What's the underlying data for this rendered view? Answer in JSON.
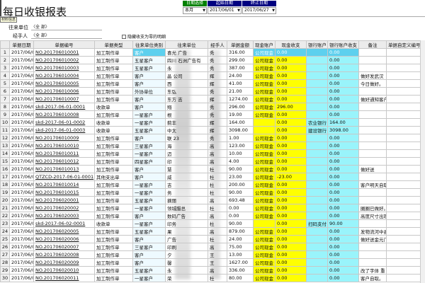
{
  "title": "每日收银报表",
  "filter": {
    "date_select_label": "日期选择",
    "start_label": "起始日期",
    "end_label": "终止日期",
    "period": "本月",
    "start": "2017/06/01",
    "end": "2017/06/27",
    "colors": {
      "date_select": "#008000",
      "start": "#000080",
      "end": "#000080"
    }
  },
  "tooltip": "材料信息",
  "form": {
    "unit_label": "往来单位",
    "unit_value": "〈全 部〉",
    "handler_label": "经手人",
    "handler_value": "〈全 部〉",
    "hide_zero_label": "隐藏收支为零的明细"
  },
  "columns": [
    "",
    "单据日期",
    "单据编号",
    "单据类型",
    "往来单位类别",
    "往来单位",
    "经手人",
    "单据金额",
    "现金账户",
    "现金收支",
    "银行账户",
    "银行账户收支",
    "备注",
    "单据自定义编号"
  ],
  "rows": [
    {
      "n": "1",
      "date": "2017/06/01",
      "no": "NO.201706010001",
      "type": "加工制作单",
      "cat": "客户",
      "unit": "喜光 广告",
      "h": "秀",
      "amt": "316.00",
      "cashacc": "公司现金",
      "cash": "0.00",
      "bankacc": "",
      "bank": "0.00",
      "memo": ""
    },
    {
      "n": "2",
      "date": "2017/06/01",
      "no": "NO.201706010002",
      "type": "加工制作单",
      "cat": "五星客户",
      "unit": "四川 石洲广告有",
      "h": "秀",
      "amt": "299.00",
      "cashacc": "公司现金",
      "cash": "0.00",
      "bankacc": "",
      "bank": "0.00",
      "memo": ""
    },
    {
      "n": "3",
      "date": "2017/06/01",
      "no": "NO.201706010003",
      "type": "加工制作单",
      "cat": "五星客户",
      "unit": "永 ",
      "h": "秀",
      "amt": "387.00",
      "cashacc": "公司现金",
      "cash": "0.00",
      "bankacc": "",
      "bank": "0.00",
      "memo": ""
    },
    {
      "n": "4",
      "date": "2017/06/01",
      "no": "NO.201706010004",
      "type": "加工制作单",
      "cat": "客户",
      "unit": "晶 公司",
      "h": "辉",
      "amt": "24.00",
      "cashacc": "公司现金",
      "cash": "0.00",
      "bankacc": "",
      "bank": "0.00",
      "memo": "做好发武汉"
    },
    {
      "n": "5",
      "date": "2017/06/01",
      "no": "NO.201706010005",
      "type": "加工制作单",
      "cat": "客户",
      "unit": "西 ",
      "h": "辉",
      "amt": "41.00",
      "cashacc": "公司现金",
      "cash": "0.00",
      "bankacc": "",
      "bank": "0.00",
      "memo": "今日做好。"
    },
    {
      "n": "6",
      "date": "2017/06/01",
      "no": "NO.201706010006",
      "type": "加工制作单",
      "cat": "外协单位",
      "unit": "东弘 ",
      "h": "秀",
      "amt": "21.00",
      "cashacc": "公司现金",
      "cash": "0.00",
      "bankacc": "",
      "bank": "0.00",
      "memo": ""
    },
    {
      "n": "7",
      "date": "2017/06/01",
      "no": "NO.201706010007",
      "type": "加工制作单",
      "cat": "客户",
      "unit": "东方 吉",
      "h": "辉",
      "amt": "1274.00",
      "cashacc": "公司现金",
      "cash": "0.00",
      "bankacc": "",
      "bank": "0.00",
      "memo": "做好通知客户"
    },
    {
      "n": "8",
      "date": "2017/06/01",
      "no": "skd-2017-06-01-0001",
      "type": "收款单",
      "cat": "客户",
      "unit": "翔 ",
      "h": "秀",
      "amt": "296.00",
      "cashacc": "公司现金",
      "cash": "296.00",
      "bankacc": "",
      "bank": "0.00",
      "memo": ""
    },
    {
      "n": "9",
      "date": "2017/06/01",
      "no": "NO.201706010008",
      "type": "加工制作单",
      "cat": "一星客户",
      "unit": "根 ",
      "h": "秀",
      "amt": "19.00",
      "cashacc": "公司现金",
      "cash": "0.00",
      "bankacc": "",
      "bank": "0.00",
      "memo": ""
    },
    {
      "n": "10",
      "date": "2017/06/01",
      "no": "skd-2017-06-01-0002",
      "type": "收款单",
      "cat": "一星客户",
      "unit": "蓟丰 ",
      "h": "辉",
      "amt": "164.00",
      "cashacc": "",
      "cash": "0.00",
      "bankacc": "农业银行",
      "bank": "164.00",
      "memo": ""
    },
    {
      "n": "11",
      "date": "2017/06/01",
      "no": "skd-2017-06-01-0003",
      "type": "收款单",
      "cat": "五星客户",
      "unit": "中太 ",
      "h": "辉",
      "amt": "3098.00",
      "cashacc": "",
      "cash": "0.00",
      "bankacc": "建设银行",
      "bank": "3098.00",
      "memo": ""
    },
    {
      "n": "12",
      "date": "2017/06/01",
      "no": "NO.201706010009",
      "type": "加工制作单",
      "cat": "客户",
      "unit": "联 23",
      "h": "秀",
      "amt": "1.00",
      "cashacc": "公司现金",
      "cash": "0.00",
      "bankacc": "",
      "bank": "0.00",
      "memo": ""
    },
    {
      "n": "13",
      "date": "2017/06/01",
      "no": "NO.201706010010",
      "type": "加工制作单",
      "cat": "三星客户",
      "unit": "海 ",
      "h": "高",
      "amt": "123.00",
      "cashacc": "公司现金",
      "cash": "0.00",
      "bankacc": "",
      "bank": "0.00",
      "memo": ""
    },
    {
      "n": "14",
      "date": "2017/06/01",
      "no": "NO.201706010011",
      "type": "加工制作单",
      "cat": "一星客户",
      "unit": "迈 ",
      "h": "高",
      "amt": "10.00",
      "cashacc": "公司现金",
      "cash": "0.00",
      "bankacc": "",
      "bank": "0.00",
      "memo": ""
    },
    {
      "n": "15",
      "date": "2017/06/01",
      "no": "NO.201706010012",
      "type": "加工制作单",
      "cat": "四星客户",
      "unit": "印 ",
      "h": "高",
      "amt": "4.00",
      "cashacc": "公司现金",
      "cash": "0.00",
      "bankacc": "",
      "bank": "0.00",
      "memo": ""
    },
    {
      "n": "16",
      "date": "2017/06/01",
      "no": "NO.201706010013",
      "type": "加工制作单",
      "cat": "客户",
      "unit": "慧 ",
      "h": "杜",
      "amt": "90.00",
      "cashacc": "公司现金",
      "cash": "0.00",
      "bankacc": "",
      "bank": "0.00",
      "memo": "做好送"
    },
    {
      "n": "17",
      "date": "2017/06/01",
      "no": "QTZCD-2017-06-01-0001",
      "type": "其他支出单",
      "cat": "客户",
      "unit": "威 ",
      "h": "杜",
      "amt": "23.00",
      "cashacc": "公司现金",
      "cash": "-23.00",
      "bankacc": "",
      "bank": "0.00",
      "memo": ""
    },
    {
      "n": "18",
      "date": "2017/06/01",
      "no": "NO.201706010014",
      "type": "加工制作单",
      "cat": "一星客户",
      "unit": " 吉",
      "h": "杜",
      "amt": "200.00",
      "cashacc": "公司现金",
      "cash": "0.00",
      "bankacc": "",
      "bank": "0.00",
      "memo": "客户明天自取"
    },
    {
      "n": "19",
      "date": "2017/06/01",
      "no": "NO.201706010015",
      "type": "加工制作单",
      "cat": "一星客户",
      "unit": " 务",
      "h": "杜",
      "amt": "90.00",
      "cashacc": "公司现金",
      "cash": "0.00",
      "bankacc": "",
      "bank": "0.00",
      "memo": ""
    },
    {
      "n": "20",
      "date": "2017/06/02",
      "no": "NO.201706020001",
      "type": "加工制作单",
      "cat": "五星客户",
      "unit": " 摘丽",
      "h": "高",
      "amt": "693.48",
      "cashacc": "公司现金",
      "cash": "0.00",
      "bankacc": "",
      "bank": "0.00",
      "memo": ""
    },
    {
      "n": "21",
      "date": "2017/06/02",
      "no": "NO.201706020002",
      "type": "加工制作单",
      "cat": "一星客户",
      "unit": " 领城腊总",
      "h": "杜",
      "amt": "0.00",
      "cashacc": "公司现金",
      "cash": "0.00",
      "bankacc": "",
      "bank": "0.00",
      "memo": "圈圈已做好。"
    },
    {
      "n": "22",
      "date": "2017/06/02",
      "no": "NO.201706020003",
      "type": "加工制作单",
      "cat": "客户",
      "unit": " 数码广告",
      "h": "高",
      "amt": "0.00",
      "cashacc": "公司现金",
      "cash": "0.00",
      "bankacc": "",
      "bank": "0.00",
      "memo": "高度尺寸出现"
    },
    {
      "n": "23",
      "date": "2017/06/02",
      "no": "skd-2017-06-02-0001",
      "type": "收款单",
      "cat": "一星客户",
      "unit": " 印务",
      "h": "杜",
      "amt": "90.00",
      "cashacc": "",
      "cash": "0.00",
      "bankacc": "扫码支付",
      "bank": "90.00",
      "memo": ""
    },
    {
      "n": "24",
      "date": "2017/06/02",
      "no": "NO.201706020005",
      "type": "加工制作单",
      "cat": "五星客户",
      "unit": " 果",
      "h": "高",
      "amt": "879.00",
      "cashacc": "公司现金",
      "cash": "0.00",
      "bankacc": "",
      "bank": "0.00",
      "memo": "发物流河中县"
    },
    {
      "n": "25",
      "date": "2017/06/02",
      "no": "NO.201706020006",
      "type": "加工制作单",
      "cat": "客户",
      "unit": " 广告",
      "h": "杜",
      "amt": "24.00",
      "cashacc": "公司现金",
      "cash": "0.00",
      "bankacc": "",
      "bank": "0.00",
      "memo": "做好送金元门"
    },
    {
      "n": "26",
      "date": "2017/06/02",
      "no": "NO.201706020007",
      "type": "加工制作单",
      "cat": "三星客户",
      "unit": " 印刷",
      "h": "高",
      "amt": "75.00",
      "cashacc": "公司现金",
      "cash": "0.00",
      "bankacc": "",
      "bank": "0.00",
      "memo": ""
    },
    {
      "n": "27",
      "date": "2017/06/02",
      "no": "NO.201706020008",
      "type": "加工制作单",
      "cat": "客户",
      "unit": "夕 ",
      "h": "王",
      "amt": "13.00",
      "cashacc": "公司现金",
      "cash": "0.00",
      "bankacc": "",
      "bank": "0.00",
      "memo": ""
    },
    {
      "n": "28",
      "date": "2017/06/02",
      "no": "NO.201706020009",
      "type": "加工制作单",
      "cat": "客户",
      "unit": "馨 ",
      "h": "王",
      "amt": "1627.00",
      "cashacc": "公司现金",
      "cash": "0.00",
      "bankacc": "",
      "bank": "0.00",
      "memo": ""
    },
    {
      "n": "29",
      "date": "2017/06/02",
      "no": "NO.201706020010",
      "type": "加工制作单",
      "cat": "五星客户",
      "unit": "永 ",
      "h": "高",
      "amt": "336.00",
      "cashacc": "公司现金",
      "cash": "0.00",
      "bankacc": "",
      "bank": "0.00",
      "memo": "改了字体  重"
    },
    {
      "n": "30",
      "date": "2017/06/02",
      "no": "NO.201706020011",
      "type": "加工制作单",
      "cat": "一星客户",
      "unit": "荣 ",
      "h": "杜",
      "amt": "80.00",
      "cashacc": "公司现金",
      "cash": "0.00",
      "bankacc": "",
      "bank": "0.00",
      "memo": "客户自取。"
    }
  ],
  "selected_row": 1
}
